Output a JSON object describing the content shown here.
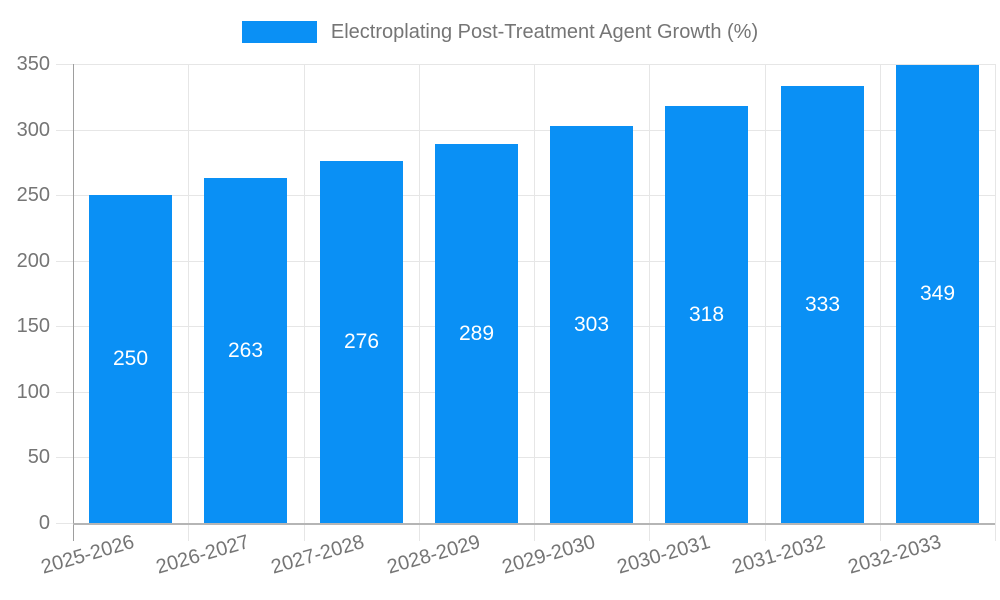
{
  "chart_data": {
    "type": "bar",
    "title": "Electroplating Post-Treatment Agent Growth (%)",
    "categories": [
      "2025-2026",
      "2026-2027",
      "2027-2028",
      "2028-2029",
      "2029-2030",
      "2030-2031",
      "2031-2032",
      "2032-2033"
    ],
    "values": [
      250,
      263,
      276,
      289,
      303,
      318,
      333,
      349
    ],
    "value_labels": [
      "250",
      "263",
      "276",
      "289",
      "303",
      "318",
      "333",
      "349"
    ],
    "xlabel": "",
    "ylabel": "",
    "ylim": [
      0,
      350
    ],
    "yticks": [
      0,
      50,
      100,
      150,
      200,
      250,
      300,
      350
    ],
    "grid": "on",
    "legend_position": "top-center",
    "bar_labels_position": "inside-center",
    "x_label_rotation_deg": -16
  },
  "colors": {
    "bar": "#0a90f5",
    "bar_label": "#ffffff",
    "axis_text": "#757575",
    "grid": "#e6e6e6",
    "y_axis_line": "#9e9e9e",
    "x_axis_line": "#b5b5b5",
    "background": "#ffffff"
  }
}
